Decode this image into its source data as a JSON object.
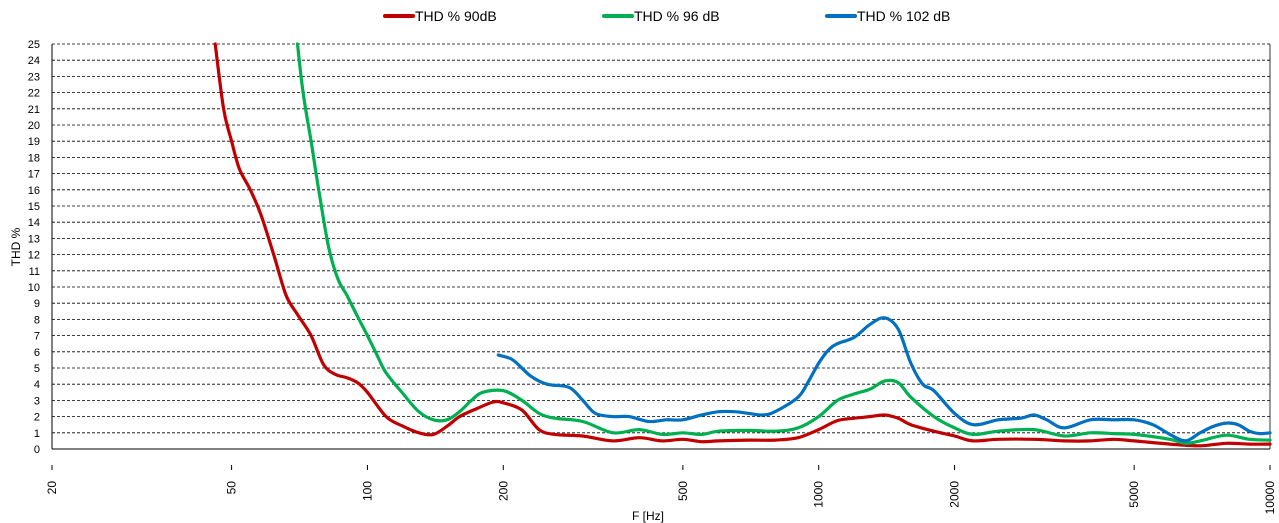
{
  "chart_data": {
    "type": "line",
    "xlabel": "F [Hz]",
    "ylabel": "THD  %",
    "x_scale": "log",
    "xlim": [
      20,
      10000
    ],
    "ylim": [
      0,
      25
    ],
    "x_ticks": [
      20,
      50,
      100,
      200,
      500,
      1000,
      2000,
      5000,
      10000
    ],
    "y_ticks": [
      0,
      1,
      2,
      3,
      4,
      5,
      6,
      7,
      8,
      9,
      10,
      11,
      12,
      13,
      14,
      15,
      16,
      17,
      18,
      19,
      20,
      21,
      22,
      23,
      24,
      25
    ],
    "grid": "horizontal dashed",
    "legend_position": "top",
    "series": [
      {
        "name": "THD % 90dB",
        "color": "#c00000",
        "points": [
          [
            46,
            25
          ],
          [
            48,
            21
          ],
          [
            50,
            19
          ],
          [
            52,
            17.3
          ],
          [
            55,
            16
          ],
          [
            58,
            14.5
          ],
          [
            62,
            12
          ],
          [
            66,
            9.5
          ],
          [
            70,
            8.3
          ],
          [
            75,
            7
          ],
          [
            80,
            5.2
          ],
          [
            85,
            4.6
          ],
          [
            90,
            4.4
          ],
          [
            95,
            4.1
          ],
          [
            100,
            3.5
          ],
          [
            110,
            2
          ],
          [
            120,
            1.4
          ],
          [
            130,
            1
          ],
          [
            140,
            0.9
          ],
          [
            150,
            1.4
          ],
          [
            160,
            2
          ],
          [
            175,
            2.5
          ],
          [
            190,
            2.9
          ],
          [
            200,
            2.85
          ],
          [
            220,
            2.4
          ],
          [
            240,
            1.2
          ],
          [
            260,
            0.9
          ],
          [
            300,
            0.8
          ],
          [
            350,
            0.5
          ],
          [
            400,
            0.7
          ],
          [
            450,
            0.5
          ],
          [
            500,
            0.6
          ],
          [
            550,
            0.45
          ],
          [
            600,
            0.5
          ],
          [
            700,
            0.55
          ],
          [
            800,
            0.55
          ],
          [
            900,
            0.7
          ],
          [
            1000,
            1.2
          ],
          [
            1100,
            1.75
          ],
          [
            1200,
            1.9
          ],
          [
            1300,
            2
          ],
          [
            1400,
            2.1
          ],
          [
            1500,
            1.9
          ],
          [
            1600,
            1.5
          ],
          [
            1800,
            1.1
          ],
          [
            2000,
            0.8
          ],
          [
            2200,
            0.5
          ],
          [
            2500,
            0.6
          ],
          [
            3000,
            0.6
          ],
          [
            3500,
            0.5
          ],
          [
            4000,
            0.5
          ],
          [
            4500,
            0.6
          ],
          [
            5000,
            0.5
          ],
          [
            6000,
            0.3
          ],
          [
            7000,
            0.2
          ],
          [
            8000,
            0.35
          ],
          [
            9000,
            0.3
          ],
          [
            10000,
            0.3
          ]
        ]
      },
      {
        "name": "THD % 96 dB",
        "color": "#00b050",
        "points": [
          [
            70,
            25
          ],
          [
            72,
            22
          ],
          [
            75,
            19
          ],
          [
            78,
            16
          ],
          [
            82,
            12.5
          ],
          [
            86,
            10.5
          ],
          [
            90,
            9.5
          ],
          [
            95,
            8.2
          ],
          [
            100,
            7
          ],
          [
            105,
            5.8
          ],
          [
            110,
            4.7
          ],
          [
            120,
            3.4
          ],
          [
            130,
            2.3
          ],
          [
            140,
            1.8
          ],
          [
            150,
            1.8
          ],
          [
            160,
            2.3
          ],
          [
            170,
            3
          ],
          [
            180,
            3.5
          ],
          [
            200,
            3.6
          ],
          [
            220,
            3
          ],
          [
            240,
            2.2
          ],
          [
            260,
            1.9
          ],
          [
            300,
            1.7
          ],
          [
            350,
            1.0
          ],
          [
            400,
            1.2
          ],
          [
            450,
            0.9
          ],
          [
            500,
            1.0
          ],
          [
            550,
            0.9
          ],
          [
            600,
            1.1
          ],
          [
            700,
            1.15
          ],
          [
            800,
            1.1
          ],
          [
            900,
            1.3
          ],
          [
            1000,
            2
          ],
          [
            1100,
            3
          ],
          [
            1200,
            3.4
          ],
          [
            1300,
            3.7
          ],
          [
            1400,
            4.2
          ],
          [
            1500,
            4.1
          ],
          [
            1600,
            3.2
          ],
          [
            1800,
            2
          ],
          [
            2000,
            1.3
          ],
          [
            2200,
            0.9
          ],
          [
            2500,
            1.1
          ],
          [
            3000,
            1.2
          ],
          [
            3500,
            0.8
          ],
          [
            4000,
            1.0
          ],
          [
            4500,
            0.95
          ],
          [
            5000,
            0.9
          ],
          [
            6000,
            0.6
          ],
          [
            6500,
            0.35
          ],
          [
            7000,
            0.5
          ],
          [
            8000,
            0.85
          ],
          [
            9000,
            0.6
          ],
          [
            10000,
            0.55
          ]
        ]
      },
      {
        "name": "THD % 102 dB",
        "color": "#0070c0",
        "points": [
          [
            195,
            5.8
          ],
          [
            210,
            5.5
          ],
          [
            230,
            4.5
          ],
          [
            250,
            4
          ],
          [
            280,
            3.8
          ],
          [
            300,
            3.0
          ],
          [
            320,
            2.2
          ],
          [
            350,
            2.0
          ],
          [
            380,
            2.0
          ],
          [
            420,
            1.7
          ],
          [
            460,
            1.8
          ],
          [
            500,
            1.8
          ],
          [
            550,
            2.1
          ],
          [
            600,
            2.3
          ],
          [
            650,
            2.3
          ],
          [
            700,
            2.2
          ],
          [
            750,
            2.1
          ],
          [
            800,
            2.3
          ],
          [
            900,
            3.2
          ],
          [
            950,
            4.2
          ],
          [
            1000,
            5.3
          ],
          [
            1050,
            6.1
          ],
          [
            1100,
            6.5
          ],
          [
            1200,
            6.9
          ],
          [
            1300,
            7.7
          ],
          [
            1400,
            8.1
          ],
          [
            1500,
            7.4
          ],
          [
            1600,
            5.3
          ],
          [
            1700,
            4.0
          ],
          [
            1800,
            3.6
          ],
          [
            2000,
            2.2
          ],
          [
            2200,
            1.5
          ],
          [
            2500,
            1.8
          ],
          [
            2800,
            1.9
          ],
          [
            3000,
            2.1
          ],
          [
            3200,
            1.8
          ],
          [
            3500,
            1.3
          ],
          [
            4000,
            1.8
          ],
          [
            4500,
            1.8
          ],
          [
            5000,
            1.8
          ],
          [
            5500,
            1.5
          ],
          [
            6000,
            0.9
          ],
          [
            6500,
            0.5
          ],
          [
            7000,
            1.0
          ],
          [
            7500,
            1.4
          ],
          [
            8000,
            1.6
          ],
          [
            8500,
            1.5
          ],
          [
            9000,
            1.1
          ],
          [
            9500,
            0.95
          ],
          [
            10000,
            1.0
          ]
        ]
      }
    ]
  }
}
